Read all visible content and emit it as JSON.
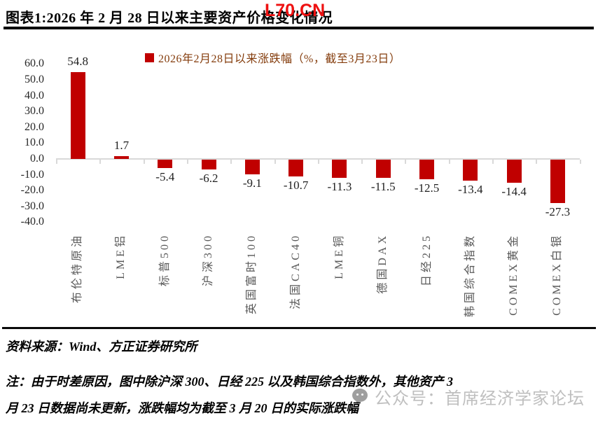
{
  "header": {
    "title": "图表1:2026 年 2 月 28 日以来主要资产价格变化情况",
    "watermark": "L70.CN"
  },
  "chart_data": {
    "type": "bar",
    "title": "图表1:2026 年 2 月 28 日以来主要资产价格变化情况",
    "legend": "2026年2月28日以来涨跌幅（%，截至3月23日）",
    "legend_position": "top",
    "categories": [
      "布伦特原油",
      "LME铝",
      "标普500",
      "沪深300",
      "英国富时100",
      "法国CAC40",
      "LME铜",
      "德国DAX",
      "日经225",
      "韩国综合指数",
      "COMEX黄金",
      "COMEX白银"
    ],
    "values": [
      54.8,
      1.7,
      -5.4,
      -6.2,
      -9.1,
      -10.7,
      -11.3,
      -11.5,
      -12.5,
      -13.4,
      -14.4,
      -27.3
    ],
    "ylim": [
      -40,
      60
    ],
    "ytick_step": 10,
    "ytick_labels": [
      "60.0",
      "50.0",
      "40.0",
      "30.0",
      "20.0",
      "10.0",
      "0.0",
      "-10.0",
      "-20.0",
      "-30.0",
      "-40.0"
    ],
    "grid": false,
    "bar_color": "#C00000",
    "axis_color": "#D9D9D9",
    "legend_text_color": "#843C0C",
    "data_label_color": "#1f1f1f",
    "category_label_color": "#595959"
  },
  "footer": {
    "source": "资料来源：Wind、方正证券研究所",
    "note_line1": "注：由于时差原因，图中除沪深 300、日经 225 以及韩国综合指数外，其他资产 3",
    "note_line2": "月 23 日数据尚未更新，涨跌幅均为截至 3 月 20 日的实际涨跌幅",
    "watermark_text": "公众号：首席经济学家论坛"
  }
}
